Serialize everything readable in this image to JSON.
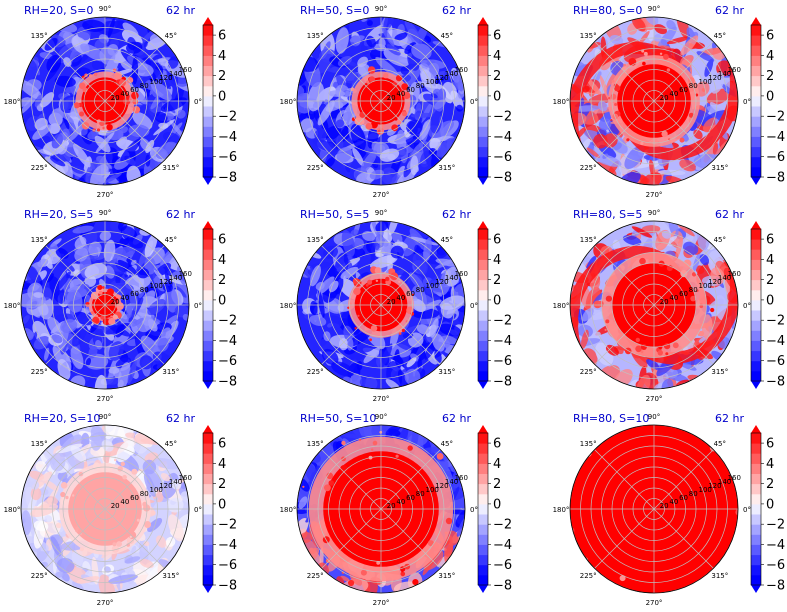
{
  "colors": {
    "title_text": "#0000cc",
    "cold": "#0000ff",
    "neutral": "#ffffff",
    "warm": "#ff0000",
    "grid": "#c0c0c0"
  },
  "chart_data": {
    "type": "polar-contourf",
    "valid_time_label": "62 hr",
    "angle_ticks": [
      "0°",
      "45°",
      "90°",
      "135°",
      "180°",
      "225°",
      "270°",
      "315°"
    ],
    "radial_ticks": [
      "20",
      "40",
      "60",
      "80",
      "100",
      "120",
      "140",
      "160"
    ],
    "colorbar_ticks": [
      "6",
      "4",
      "2",
      "0",
      "−2",
      "−4",
      "−6",
      "−8"
    ],
    "colorbar_range": [
      -8,
      7
    ],
    "colorbar_extend": "both",
    "colormap": "bwr",
    "layout": "3x3",
    "panels": [
      {
        "title": "RH=20, S=0",
        "valid": "62 hr",
        "core_radius_km": 45,
        "core_sign": "warm",
        "environment": "cold",
        "spiral": false
      },
      {
        "title": "RH=50, S=0",
        "valid": "62 hr",
        "core_radius_km": 45,
        "core_sign": "warm",
        "environment": "cold",
        "spiral": false
      },
      {
        "title": "RH=80, S=0",
        "valid": "62 hr",
        "core_radius_km": 70,
        "core_sign": "warm",
        "environment": "mixed",
        "spiral": true
      },
      {
        "title": "RH=20, S=5",
        "valid": "62 hr",
        "core_radius_km": 25,
        "core_sign": "warm",
        "environment": "cold",
        "spiral": false
      },
      {
        "title": "RH=50, S=5",
        "valid": "62 hr",
        "core_radius_km": 50,
        "core_sign": "warm",
        "environment": "cold",
        "spiral": false
      },
      {
        "title": "RH=80, S=5",
        "valid": "62 hr",
        "core_radius_km": 80,
        "core_sign": "warm",
        "environment": "mixed",
        "spiral": true
      },
      {
        "title": "RH=20, S=10",
        "valid": "62 hr",
        "core_radius_km": 70,
        "core_sign": "weak-warm",
        "environment": "weak",
        "spiral": false
      },
      {
        "title": "RH=50, S=10",
        "valid": "62 hr",
        "core_radius_km": 110,
        "core_sign": "warm",
        "environment": "cold-north",
        "spiral": false
      },
      {
        "title": "RH=80, S=10",
        "valid": "62 hr",
        "core_radius_km": 160,
        "core_sign": "warm",
        "environment": "warm",
        "spiral": false
      }
    ]
  }
}
